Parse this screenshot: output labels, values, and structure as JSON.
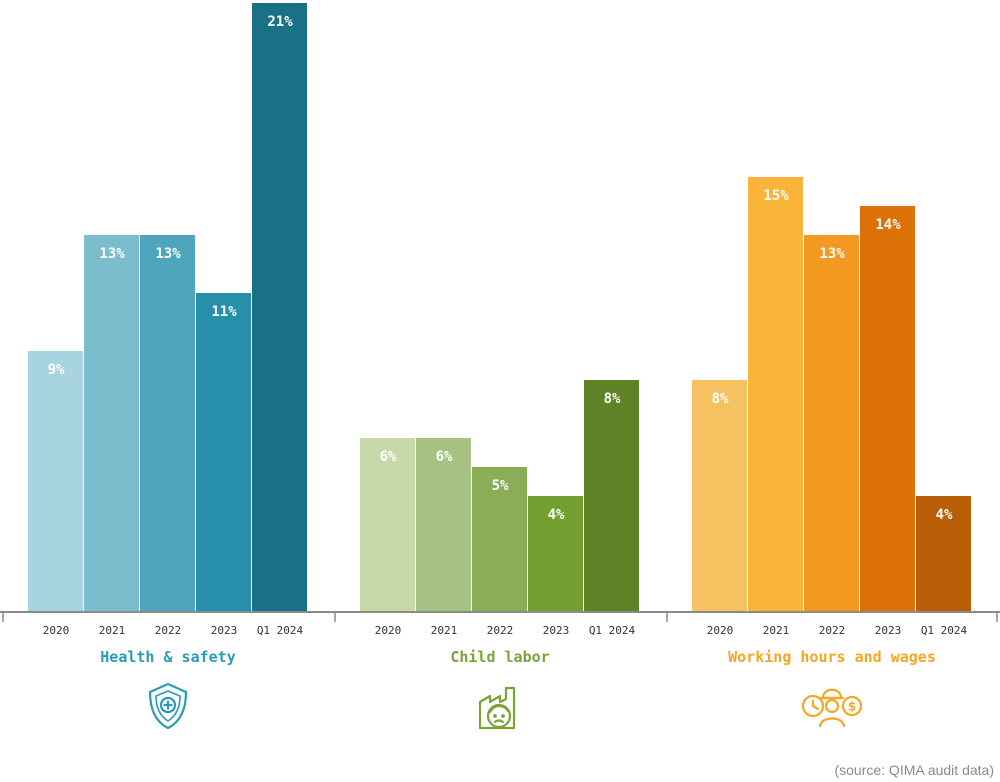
{
  "chart_data": {
    "type": "bar",
    "ylim": [
      0,
      21
    ],
    "grid": false,
    "value_suffix": "%",
    "groups": [
      {
        "name": "Health & safety",
        "icon": "shield-plus-icon",
        "color": "#2a9bb5",
        "categories": [
          "2020",
          "2021",
          "2022",
          "2023",
          "Q1 2024"
        ],
        "values": [
          9,
          13,
          13,
          11,
          21
        ],
        "colors": [
          "#a8d3e0",
          "#7bbccd",
          "#4fa6bc",
          "#2690ab",
          "#1a7086"
        ]
      },
      {
        "name": "Child labor",
        "icon": "factory-child-icon",
        "color": "#7aa33a",
        "categories": [
          "2020",
          "2021",
          "2022",
          "2023",
          "Q1 2024"
        ],
        "values": [
          6,
          6,
          5,
          4,
          8
        ],
        "colors": [
          "#c8d9a9",
          "#a6c283",
          "#8cad57",
          "#739e30",
          "#5e8326"
        ]
      },
      {
        "name": "Working hours and wages",
        "icon": "clock-worker-dollar-icon",
        "color": "#f5a623",
        "categories": [
          "2020",
          "2021",
          "2022",
          "2023",
          "Q1 2024"
        ],
        "values": [
          8,
          15,
          13,
          14,
          4
        ],
        "colors": [
          "#f6c261",
          "#fbb43a",
          "#f39820",
          "#dc7107",
          "#b95e06"
        ]
      }
    ]
  },
  "source": "(source: QIMA audit data)"
}
